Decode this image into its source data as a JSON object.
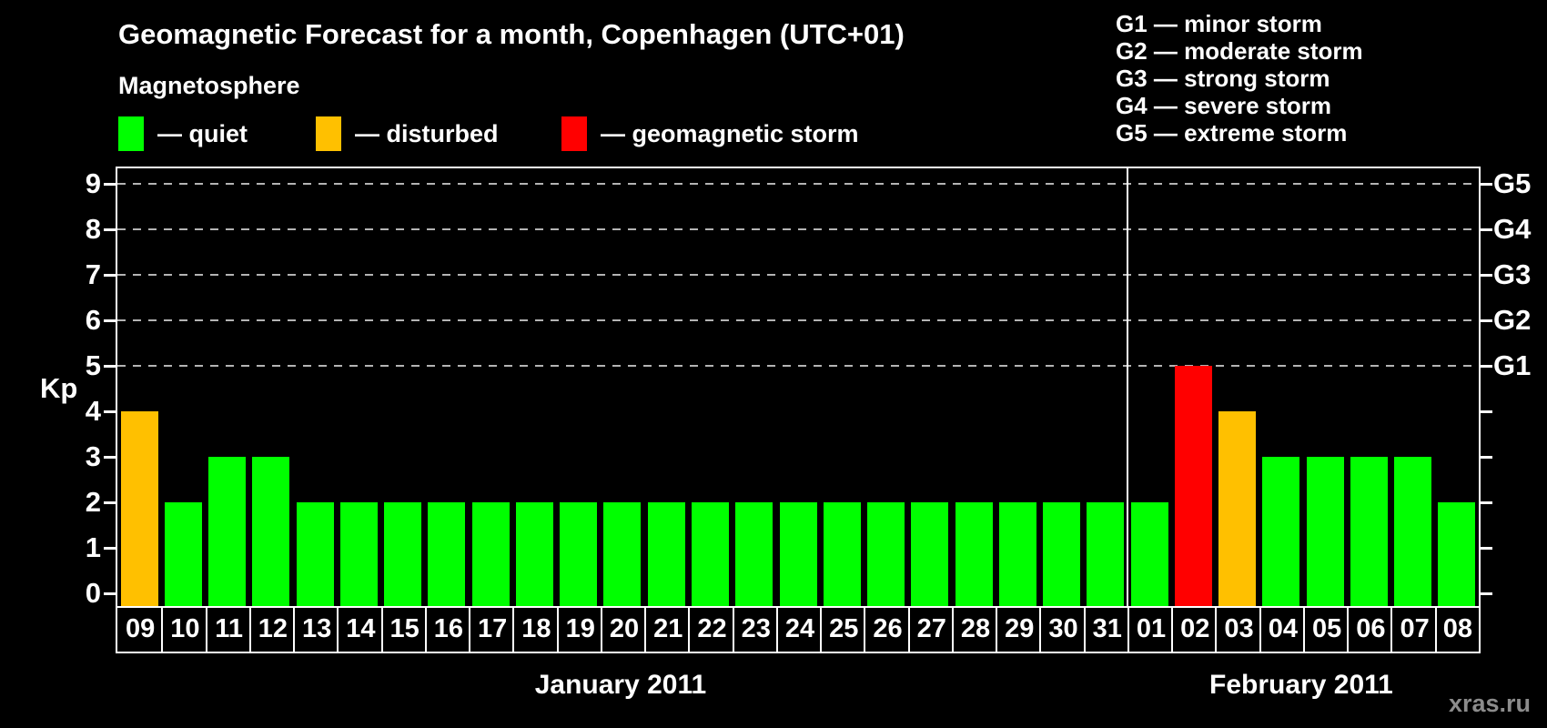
{
  "title": "Geomagnetic Forecast for a month, Copenhagen (UTC+01)",
  "legend": {
    "title": "Magnetosphere",
    "items": [
      {
        "name": "quiet",
        "label": "— quiet",
        "color": "#00ff00"
      },
      {
        "name": "disturbed",
        "label": "— disturbed",
        "color": "#ffc000"
      },
      {
        "name": "storm",
        "label": "— geomagnetic storm",
        "color": "#ff0000"
      }
    ]
  },
  "storm_scale_legend": [
    "G1 — minor storm",
    "G2 — moderate storm",
    "G3 — strong storm",
    "G4 — severe storm",
    "G5 — extreme storm"
  ],
  "watermark": "xras.ru",
  "chart_data": {
    "type": "bar",
    "title": "Geomagnetic Forecast for a month, Copenhagen (UTC+01)",
    "ylabel": "Kp",
    "ylim": [
      0,
      9
    ],
    "yticks": [
      0,
      1,
      2,
      3,
      4,
      5,
      6,
      7,
      8,
      9
    ],
    "grid": "dashed horizontal lines only at Kp 5-9 (G1-G5 levels)",
    "right_axis": [
      {
        "kp": 5,
        "label": "G1"
      },
      {
        "kp": 6,
        "label": "G2"
      },
      {
        "kp": 7,
        "label": "G3"
      },
      {
        "kp": 8,
        "label": "G4"
      },
      {
        "kp": 9,
        "label": "G5"
      }
    ],
    "months": [
      {
        "label": "January 2011",
        "days": 23
      },
      {
        "label": "February 2011",
        "days": 8
      }
    ],
    "categories": [
      "09",
      "10",
      "11",
      "12",
      "13",
      "14",
      "15",
      "16",
      "17",
      "18",
      "19",
      "20",
      "21",
      "22",
      "23",
      "24",
      "25",
      "26",
      "27",
      "28",
      "29",
      "30",
      "31",
      "01",
      "02",
      "03",
      "04",
      "05",
      "06",
      "07",
      "08"
    ],
    "values": [
      4,
      2,
      3,
      3,
      2,
      2,
      2,
      2,
      2,
      2,
      2,
      2,
      2,
      2,
      2,
      2,
      2,
      2,
      2,
      2,
      2,
      2,
      2,
      2,
      5,
      4,
      3,
      3,
      3,
      3,
      2
    ],
    "statuses": [
      "disturbed",
      "quiet",
      "quiet",
      "quiet",
      "quiet",
      "quiet",
      "quiet",
      "quiet",
      "quiet",
      "quiet",
      "quiet",
      "quiet",
      "quiet",
      "quiet",
      "quiet",
      "quiet",
      "quiet",
      "quiet",
      "quiet",
      "quiet",
      "quiet",
      "quiet",
      "quiet",
      "quiet",
      "storm",
      "disturbed",
      "quiet",
      "quiet",
      "quiet",
      "quiet",
      "quiet"
    ],
    "colors": {
      "quiet": "#00ff00",
      "disturbed": "#ffc000",
      "storm": "#ff0000"
    }
  }
}
